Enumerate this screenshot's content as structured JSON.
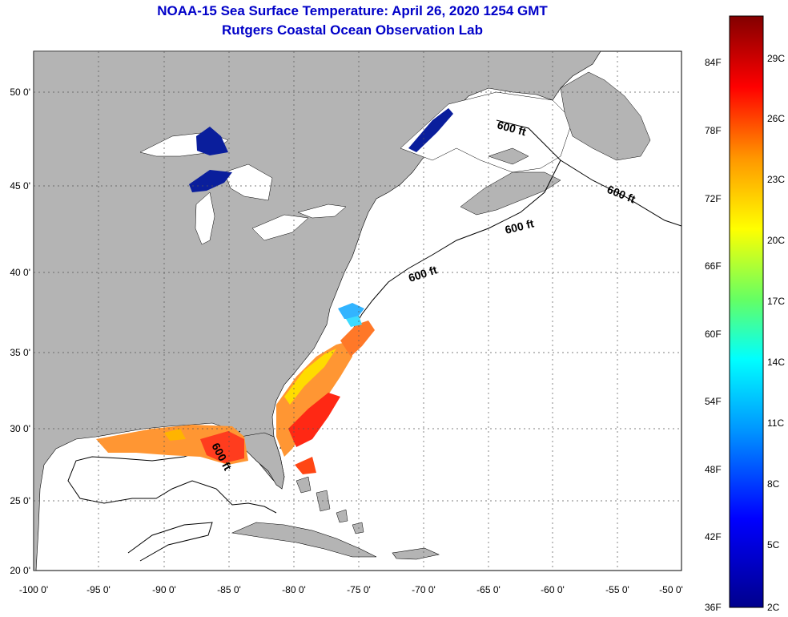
{
  "title": {
    "line1": "NOAA-15 Sea Surface Temperature:  April 26, 2020 1254 GMT",
    "line2": "Rutgers Coastal Ocean Observation Lab"
  },
  "axes": {
    "lat_labels": [
      "50 0'",
      "45 0'",
      "40 0'",
      "35 0'",
      "30 0'",
      "25 0'",
      "20 0'"
    ],
    "lon_labels": [
      "-100 0'",
      "-95 0'",
      "-90 0'",
      "-85 0'",
      "-80 0'",
      "-75 0'",
      "-70 0'",
      "-65 0'",
      "-60 0'",
      "-55 0'",
      "-50 0'"
    ]
  },
  "contour_labels": [
    "600 ft",
    "600 ft",
    "600 ft",
    "600 ft",
    "600 ft"
  ],
  "colorbar": {
    "fahrenheit": [
      "84F",
      "78F",
      "72F",
      "66F",
      "60F",
      "54F",
      "48F",
      "42F",
      "36F"
    ],
    "celsius": [
      "29C",
      "26C",
      "23C",
      "20C",
      "17C",
      "14C",
      "11C",
      "8C",
      "5C",
      "2C"
    ]
  },
  "colors": {
    "land": "#b4b4b4",
    "ocean": "#ffffff",
    "title": "#0000c8"
  }
}
